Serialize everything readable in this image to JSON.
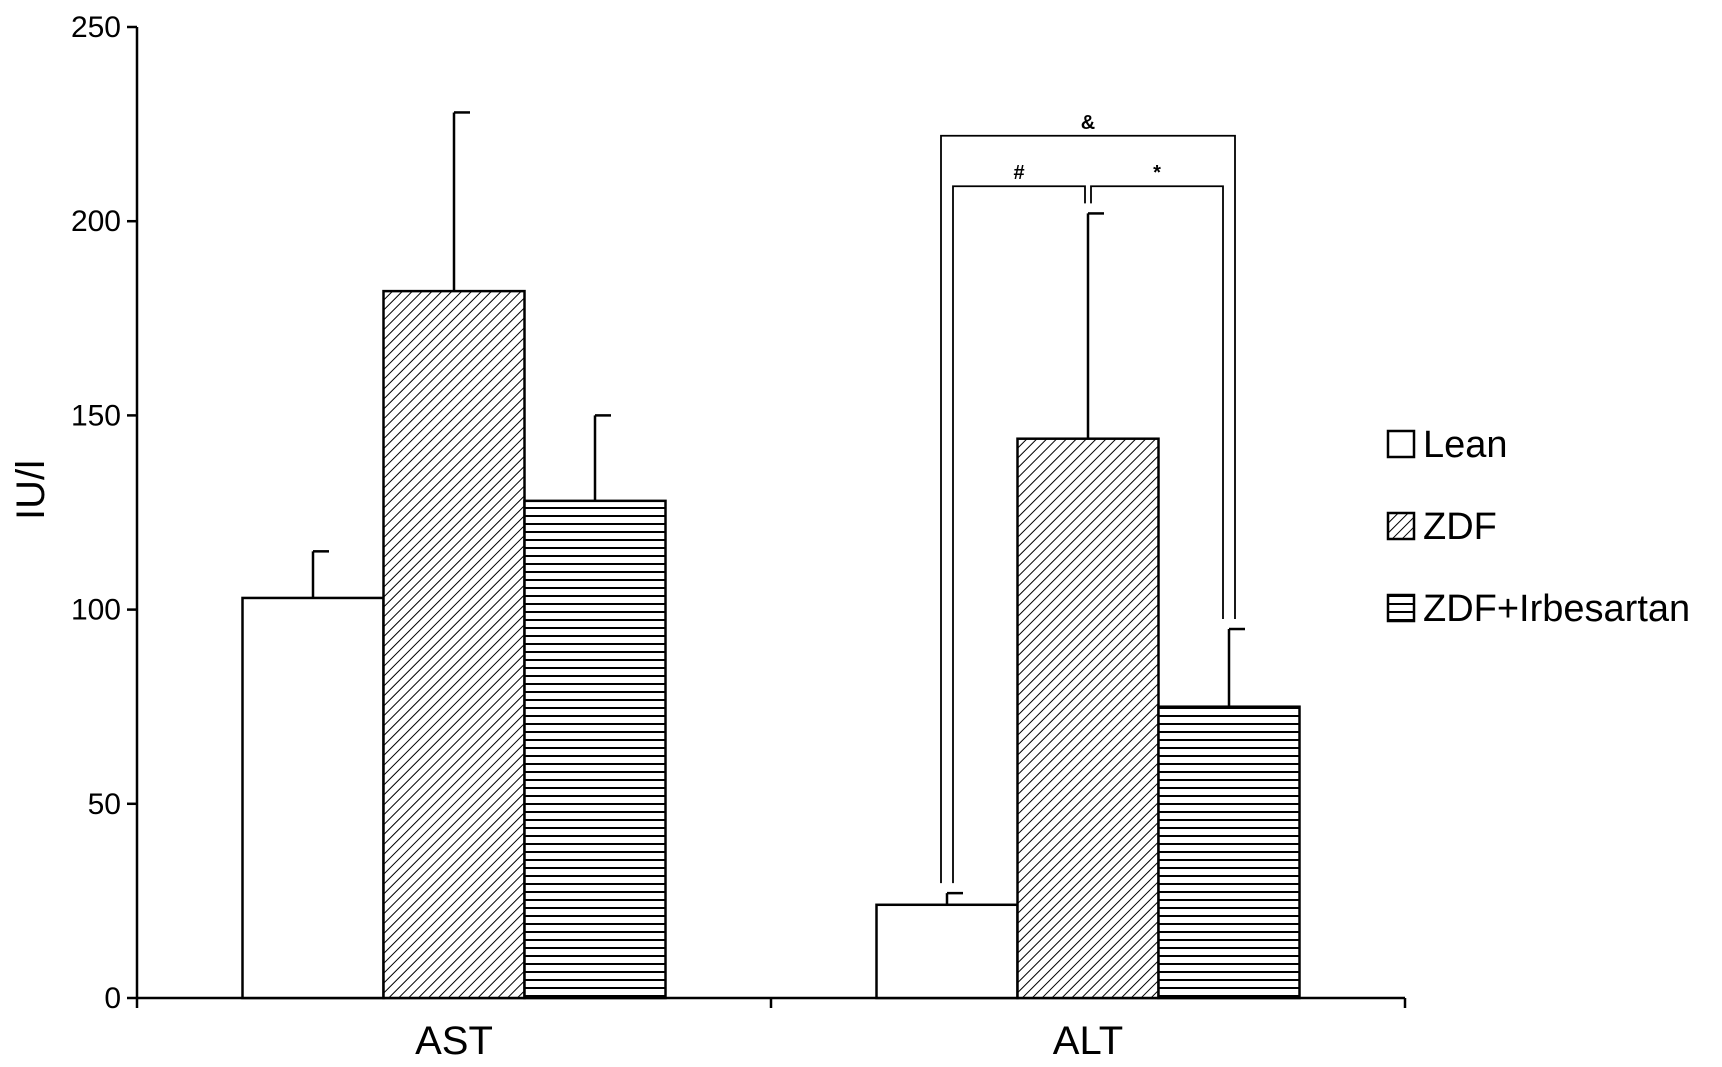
{
  "chart_data": {
    "type": "bar",
    "ylabel": "IU/l",
    "xlabel": "",
    "ylim": [
      0,
      250
    ],
    "yticks": [
      0,
      50,
      100,
      150,
      200,
      250
    ],
    "categories": [
      "AST",
      "ALT"
    ],
    "series": [
      {
        "name": "Lean",
        "pattern": "none",
        "values": [
          103,
          24
        ],
        "errors": [
          12,
          3
        ]
      },
      {
        "name": "ZDF",
        "pattern": "diagonal",
        "values": [
          182,
          144
        ],
        "errors": [
          46,
          58
        ]
      },
      {
        "name": "ZDF+Irbesartan",
        "pattern": "horizontal",
        "values": [
          128,
          75
        ],
        "errors": [
          22,
          20
        ]
      }
    ],
    "legend": {
      "position": "right"
    },
    "grid": false,
    "annotations": [
      {
        "category": "ALT",
        "from": "Lean",
        "to": "ZDF+Irbesartan",
        "label": "&",
        "level": 2
      },
      {
        "category": "ALT",
        "from": "Lean",
        "to": "ZDF",
        "label": "#",
        "level": 1
      },
      {
        "category": "ALT",
        "from": "ZDF",
        "to": "ZDF+Irbesartan",
        "label": "*",
        "level": 1
      }
    ],
    "colors": {
      "axis": "#000000",
      "fill": "#ffffff"
    }
  }
}
